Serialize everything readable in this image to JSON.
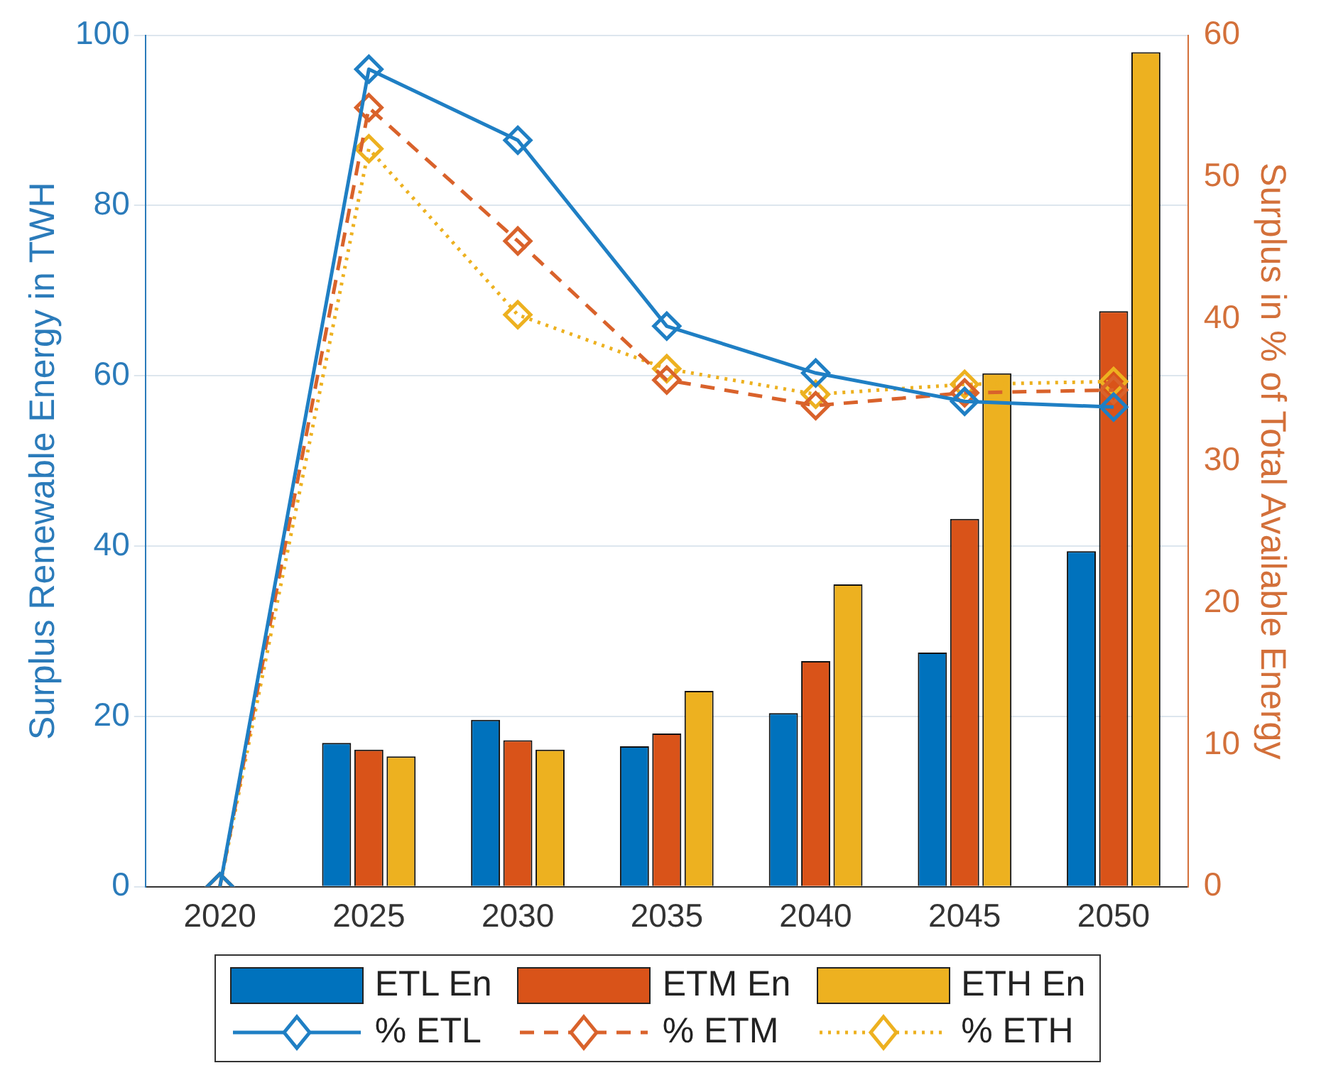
{
  "chart_data": {
    "type": "bar",
    "categories": [
      "2020",
      "2025",
      "2030",
      "2035",
      "2040",
      "2045",
      "2050"
    ],
    "ylabel": "Surplus Renewable Energy in TWH",
    "y2label": "Surplus in % of Total Available Energy",
    "ylim": [
      0,
      100
    ],
    "yticks": [
      0,
      20,
      40,
      60,
      80,
      100
    ],
    "y2lim": [
      0,
      60
    ],
    "y2ticks": [
      0,
      10,
      20,
      30,
      40,
      50,
      60
    ],
    "grid": "y",
    "legend": "bottom",
    "series": [
      {
        "name": "ETL En",
        "color": "#0072bd",
        "values": [
          0,
          16.9,
          19.6,
          16.5,
          20.4,
          27.5,
          39.4
        ]
      },
      {
        "name": "ETM En",
        "color": "#d95319",
        "values": [
          0,
          16.1,
          17.2,
          18.0,
          26.5,
          43.2,
          67.6
        ]
      },
      {
        "name": "ETH En",
        "color": "#edb120",
        "values": [
          0,
          15.3,
          16.1,
          23.0,
          35.5,
          60.3,
          98.0
        ]
      },
      {
        "name": "% ETL",
        "type": "line",
        "axis": "y2",
        "line_style": "solid",
        "marker": "diamond",
        "color": "#1f7fc4",
        "values": [
          0,
          57.6,
          52.6,
          39.5,
          36.2,
          34.2,
          33.8
        ]
      },
      {
        "name": "% ETM",
        "type": "line",
        "axis": "y2",
        "line_style": "dashed",
        "marker": "diamond",
        "color": "#d9622b",
        "values": [
          0,
          54.9,
          45.5,
          35.7,
          33.9,
          34.8,
          35.0
        ]
      },
      {
        "name": "% ETH",
        "type": "line",
        "axis": "y2",
        "line_style": "dotted",
        "marker": "diamond",
        "color": "#edb120",
        "values": [
          0,
          52.0,
          40.3,
          36.5,
          34.7,
          35.4,
          35.6
        ]
      }
    ]
  }
}
